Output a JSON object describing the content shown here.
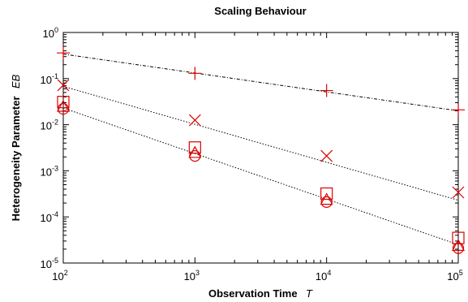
{
  "chart_data": {
    "type": "scatter",
    "title": "Scaling Behaviour",
    "xlabel": {
      "text": "Observation Time",
      "symbol": "T"
    },
    "ylabel": {
      "text": "Heterogeneity Parameter",
      "symbol": "EB"
    },
    "xscale": "log",
    "yscale": "log",
    "xlim": [
      100,
      100000
    ],
    "ylim": [
      1e-05,
      1
    ],
    "grid": false,
    "legend": "none",
    "marker_color": "#dd0000",
    "line_color": "#000000",
    "x_ticks": [
      {
        "base": "10",
        "exp": "2"
      },
      {
        "base": "10",
        "exp": "3"
      },
      {
        "base": "10",
        "exp": "4"
      },
      {
        "base": "10",
        "exp": "5"
      }
    ],
    "y_ticks": [
      {
        "base": "10",
        "exp": "-5"
      },
      {
        "base": "10",
        "exp": "-4"
      },
      {
        "base": "10",
        "exp": "-3"
      },
      {
        "base": "10",
        "exp": "-2"
      },
      {
        "base": "10",
        "exp": "-1"
      },
      {
        "base": "10",
        "exp": "0"
      }
    ],
    "series": [
      {
        "marker": "plus",
        "x": [
          100,
          1000,
          10000,
          100000
        ],
        "y": [
          0.36,
          0.13,
          0.055,
          0.021
        ]
      },
      {
        "marker": "cross",
        "x": [
          100,
          1000,
          10000,
          100000
        ],
        "y": [
          0.072,
          0.0125,
          0.0021,
          0.00034
        ]
      },
      {
        "marker": "square",
        "x": [
          100,
          1000,
          10000,
          100000
        ],
        "y": [
          0.031,
          0.0032,
          0.00032,
          3.5e-05
        ]
      },
      {
        "marker": "triangle",
        "x": [
          100,
          1000,
          10000,
          100000
        ],
        "y": [
          0.025,
          0.0025,
          0.00024,
          2.4e-05
        ]
      },
      {
        "marker": "circle",
        "x": [
          100,
          1000,
          10000,
          100000
        ],
        "y": [
          0.022,
          0.0021,
          0.00021,
          2.1e-05
        ]
      }
    ],
    "fit_lines": [
      {
        "dash": "dashdot",
        "x": [
          100,
          100000
        ],
        "y": [
          0.34,
          0.02
        ]
      },
      {
        "dash": "dotted",
        "x": [
          100,
          100000
        ],
        "y": [
          0.068,
          0.00023
        ]
      },
      {
        "dash": "dotted",
        "x": [
          100,
          100000
        ],
        "y": [
          0.023,
          2.5e-05
        ]
      }
    ]
  }
}
